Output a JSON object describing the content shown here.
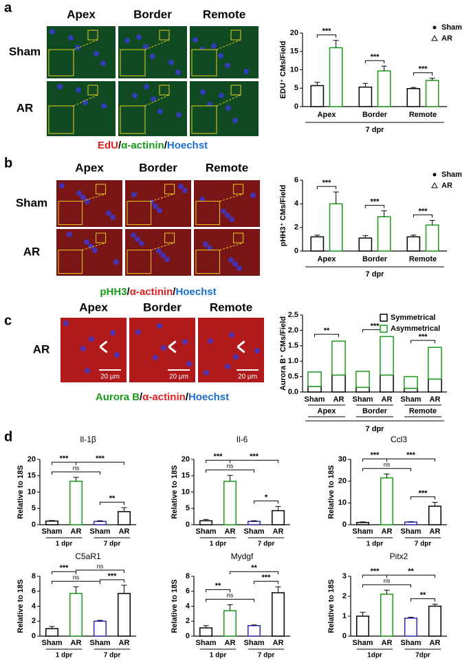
{
  "panels": {
    "labels": [
      "a",
      "b",
      "c",
      "d"
    ],
    "a": {
      "columns": [
        "Apex",
        "Border",
        "Remote"
      ],
      "rows": [
        "Sham",
        "AR"
      ],
      "stain": [
        "EdU",
        "/",
        "α-actinin",
        "/",
        "Hoechst"
      ]
    },
    "b": {
      "columns": [
        "Apex",
        "Border",
        "Remote"
      ],
      "rows": [
        "Sham",
        "AR"
      ],
      "stain": [
        "pHH3",
        "/",
        "α-actinin",
        "/",
        "Hoechst"
      ]
    },
    "c": {
      "columns": [
        "Apex",
        "Border",
        "Remote"
      ],
      "rows": [
        "AR"
      ],
      "stain": [
        "Aurora B",
        "/",
        "α-actinin",
        "/",
        "Hoechst"
      ],
      "scale_bar": "20 μm"
    }
  },
  "chart_data": [
    {
      "type": "bar",
      "ylabel": "EDU⁺ CMs/Field",
      "xlabel": "7 dpr",
      "categories": [
        "Apex",
        "Border",
        "Remote"
      ],
      "series": [
        {
          "name": "Sham",
          "color": "#000000",
          "values": [
            5.7,
            5.3,
            4.9
          ],
          "errors": [
            0.9,
            1.0,
            0.3
          ]
        },
        {
          "name": "AR",
          "color": "#1a9a1a",
          "values": [
            16,
            9.7,
            7.1
          ],
          "errors": [
            2,
            1.3,
            0.6
          ]
        }
      ],
      "ylim": [
        0,
        20
      ],
      "yticks": [
        0,
        5,
        10,
        15,
        20
      ],
      "significance": [
        "***",
        "***",
        "***"
      ],
      "legend": "upper right"
    },
    {
      "type": "bar",
      "ylabel": "pHH3⁺ CMs/Field",
      "xlabel": "7 dpr",
      "categories": [
        "Apex",
        "Border",
        "Remote"
      ],
      "series": [
        {
          "name": "Sham",
          "color": "#000000",
          "values": [
            1.2,
            1.1,
            1.2
          ],
          "errors": [
            0.15,
            0.2,
            0.15
          ]
        },
        {
          "name": "AR",
          "color": "#1a9a1a",
          "values": [
            4.0,
            2.9,
            2.2
          ],
          "errors": [
            1.0,
            0.5,
            0.4
          ]
        }
      ],
      "ylim": [
        0,
        6
      ],
      "yticks": [
        0,
        2,
        4,
        6
      ],
      "significance": [
        "***",
        "***",
        "***"
      ],
      "legend": "upper right"
    },
    {
      "type": "stacked_bar",
      "ylabel": "Aurora B⁺ CMs/Field",
      "xlabel": "7 dpr",
      "categories": [
        "Sham",
        "AR",
        "Sham",
        "AR",
        "Sham",
        "AR"
      ],
      "groups": [
        "Apex",
        "Border",
        "Remote"
      ],
      "series": [
        {
          "name": "Symmetrical",
          "color": "#000000",
          "values": [
            0.18,
            0.55,
            0.15,
            0.55,
            0.12,
            0.42
          ]
        },
        {
          "name": "Asymmetrical",
          "color": "#1a9a1a",
          "values": [
            0.47,
            1.1,
            0.52,
            1.25,
            0.38,
            1.03
          ]
        }
      ],
      "ylim": [
        0,
        2.5
      ],
      "yticks": [
        {
          "value": 0,
          "label": "0.0"
        },
        0.5,
        {
          "value": 1,
          "label": "1.0"
        },
        1.5,
        {
          "value": 2,
          "label": "2.0"
        },
        2.5
      ],
      "significance": [
        "**",
        "***",
        "***"
      ],
      "legend": "upper right"
    },
    {
      "type": "bar",
      "title": "Il-1β",
      "ylabel": "Relative to 18S",
      "categories": [
        "Sham",
        "AR",
        "Sham",
        "AR"
      ],
      "groups": [
        "1 dpr",
        "7 dpr"
      ],
      "colors": [
        "#000000",
        "#1a9a1a",
        "#2a2ab0",
        "#000000"
      ],
      "values": [
        1.1,
        13.3,
        1.0,
        4.0
      ],
      "errors": [
        0.2,
        1.2,
        0.2,
        1.2
      ],
      "ylim": [
        0,
        20
      ],
      "yticks": [
        0,
        5,
        10,
        15,
        20
      ],
      "comparisons": [
        {
          "label": "**",
          "pair": [
            2,
            3
          ]
        },
        {
          "label": "ns",
          "pair": [
            0,
            2
          ]
        },
        {
          "label": "***",
          "pair": [
            0,
            1
          ]
        },
        {
          "label": "***",
          "pair": [
            1,
            3
          ]
        }
      ]
    },
    {
      "type": "bar",
      "title": "Il-6",
      "ylabel": "Relative to 18S",
      "categories": [
        "Sham",
        "AR",
        "Sham",
        "AR"
      ],
      "groups": [
        "1 dpr",
        "7 dpr"
      ],
      "colors": [
        "#000000",
        "#1a9a1a",
        "#2a2ab0",
        "#000000"
      ],
      "values": [
        1.2,
        13.3,
        1.0,
        4.3
      ],
      "errors": [
        0.4,
        1.8,
        0.2,
        1.3
      ],
      "ylim": [
        0,
        20
      ],
      "yticks": [
        0,
        5,
        10,
        15,
        20
      ],
      "comparisons": [
        {
          "label": "*",
          "pair": [
            2,
            3
          ]
        },
        {
          "label": "ns",
          "pair": [
            0,
            2
          ]
        },
        {
          "label": "***",
          "pair": [
            0,
            1
          ]
        },
        {
          "label": "***",
          "pair": [
            1,
            3
          ]
        }
      ]
    },
    {
      "type": "bar",
      "title": "Ccl3",
      "ylabel": "Relative to 18S",
      "categories": [
        "Sham",
        "AR",
        "Sham",
        "AR"
      ],
      "groups": [
        "1 dpr",
        "7 dpr"
      ],
      "colors": [
        "#000000",
        "#1a9a1a",
        "#2a2ab0",
        "#000000"
      ],
      "values": [
        1.0,
        21.5,
        1.2,
        8.5
      ],
      "errors": [
        0.3,
        1.8,
        0.2,
        1.8
      ],
      "ylim": [
        0,
        30
      ],
      "yticks": [
        0,
        10,
        20,
        30
      ],
      "comparisons": [
        {
          "label": "***",
          "pair": [
            2,
            3
          ]
        },
        {
          "label": "ns",
          "pair": [
            0,
            2
          ]
        },
        {
          "label": "***",
          "pair": [
            0,
            1
          ]
        },
        {
          "label": "***",
          "pair": [
            1,
            3
          ]
        }
      ]
    },
    {
      "type": "bar",
      "title": "C5aR1",
      "ylabel": "Relative to 18S",
      "categories": [
        "Sham",
        "AR",
        "Sham",
        "AR"
      ],
      "groups": [
        "1 dpr",
        "7 dpr"
      ],
      "colors": [
        "#000000",
        "#1a9a1a",
        "#2a2ab0",
        "#000000"
      ],
      "values": [
        1.0,
        5.7,
        2.0,
        5.7
      ],
      "errors": [
        0.3,
        0.9,
        0.1,
        1.1
      ],
      "ylim": [
        0,
        8
      ],
      "yticks": [
        0,
        2,
        4,
        6,
        8
      ],
      "comparisons": [
        {
          "label": "***",
          "pair": [
            2,
            3
          ]
        },
        {
          "label": "ns",
          "pair": [
            0,
            2
          ]
        },
        {
          "label": "***",
          "pair": [
            0,
            1
          ]
        },
        {
          "label": "ns",
          "pair": [
            1,
            3
          ]
        }
      ]
    },
    {
      "type": "bar",
      "title": "Mydgf",
      "ylabel": "Relative to 18S",
      "categories": [
        "Sham",
        "AR",
        "Sham",
        "AR"
      ],
      "groups": [
        "1 dpr",
        "7 dpr"
      ],
      "colors": [
        "#000000",
        "#1a9a1a",
        "#2a2ab0",
        "#000000"
      ],
      "values": [
        1.1,
        3.4,
        1.4,
        5.8
      ],
      "errors": [
        0.3,
        0.8,
        0.1,
        0.8
      ],
      "ylim": [
        0,
        8
      ],
      "yticks": [
        0,
        2,
        4,
        6,
        8
      ],
      "comparisons": [
        {
          "label": "***",
          "pair": [
            2,
            3
          ]
        },
        {
          "label": "ns",
          "pair": [
            0,
            2
          ]
        },
        {
          "label": "**",
          "pair": [
            0,
            1
          ]
        },
        {
          "label": "**",
          "pair": [
            1,
            3
          ]
        }
      ]
    },
    {
      "type": "bar",
      "title": "Pitx2",
      "ylabel": "Relative to 18S",
      "categories": [
        "Sham",
        "AR",
        "Sham",
        "AR"
      ],
      "groups": [
        "1dpr",
        "7dpr"
      ],
      "colors": [
        "#000000",
        "#1a9a1a",
        "#2a2ab0",
        "#000000"
      ],
      "values": [
        1.0,
        2.1,
        0.9,
        1.5
      ],
      "errors": [
        0.2,
        0.2,
        0.05,
        0.1
      ],
      "ylim": [
        0,
        3
      ],
      "yticks": [
        0,
        1,
        2,
        3
      ],
      "comparisons": [
        {
          "label": "**",
          "pair": [
            2,
            3
          ]
        },
        {
          "label": "ns",
          "pair": [
            0,
            2
          ]
        },
        {
          "label": "***",
          "pair": [
            0,
            1
          ]
        },
        {
          "label": "**",
          "pair": [
            1,
            3
          ]
        }
      ]
    }
  ]
}
